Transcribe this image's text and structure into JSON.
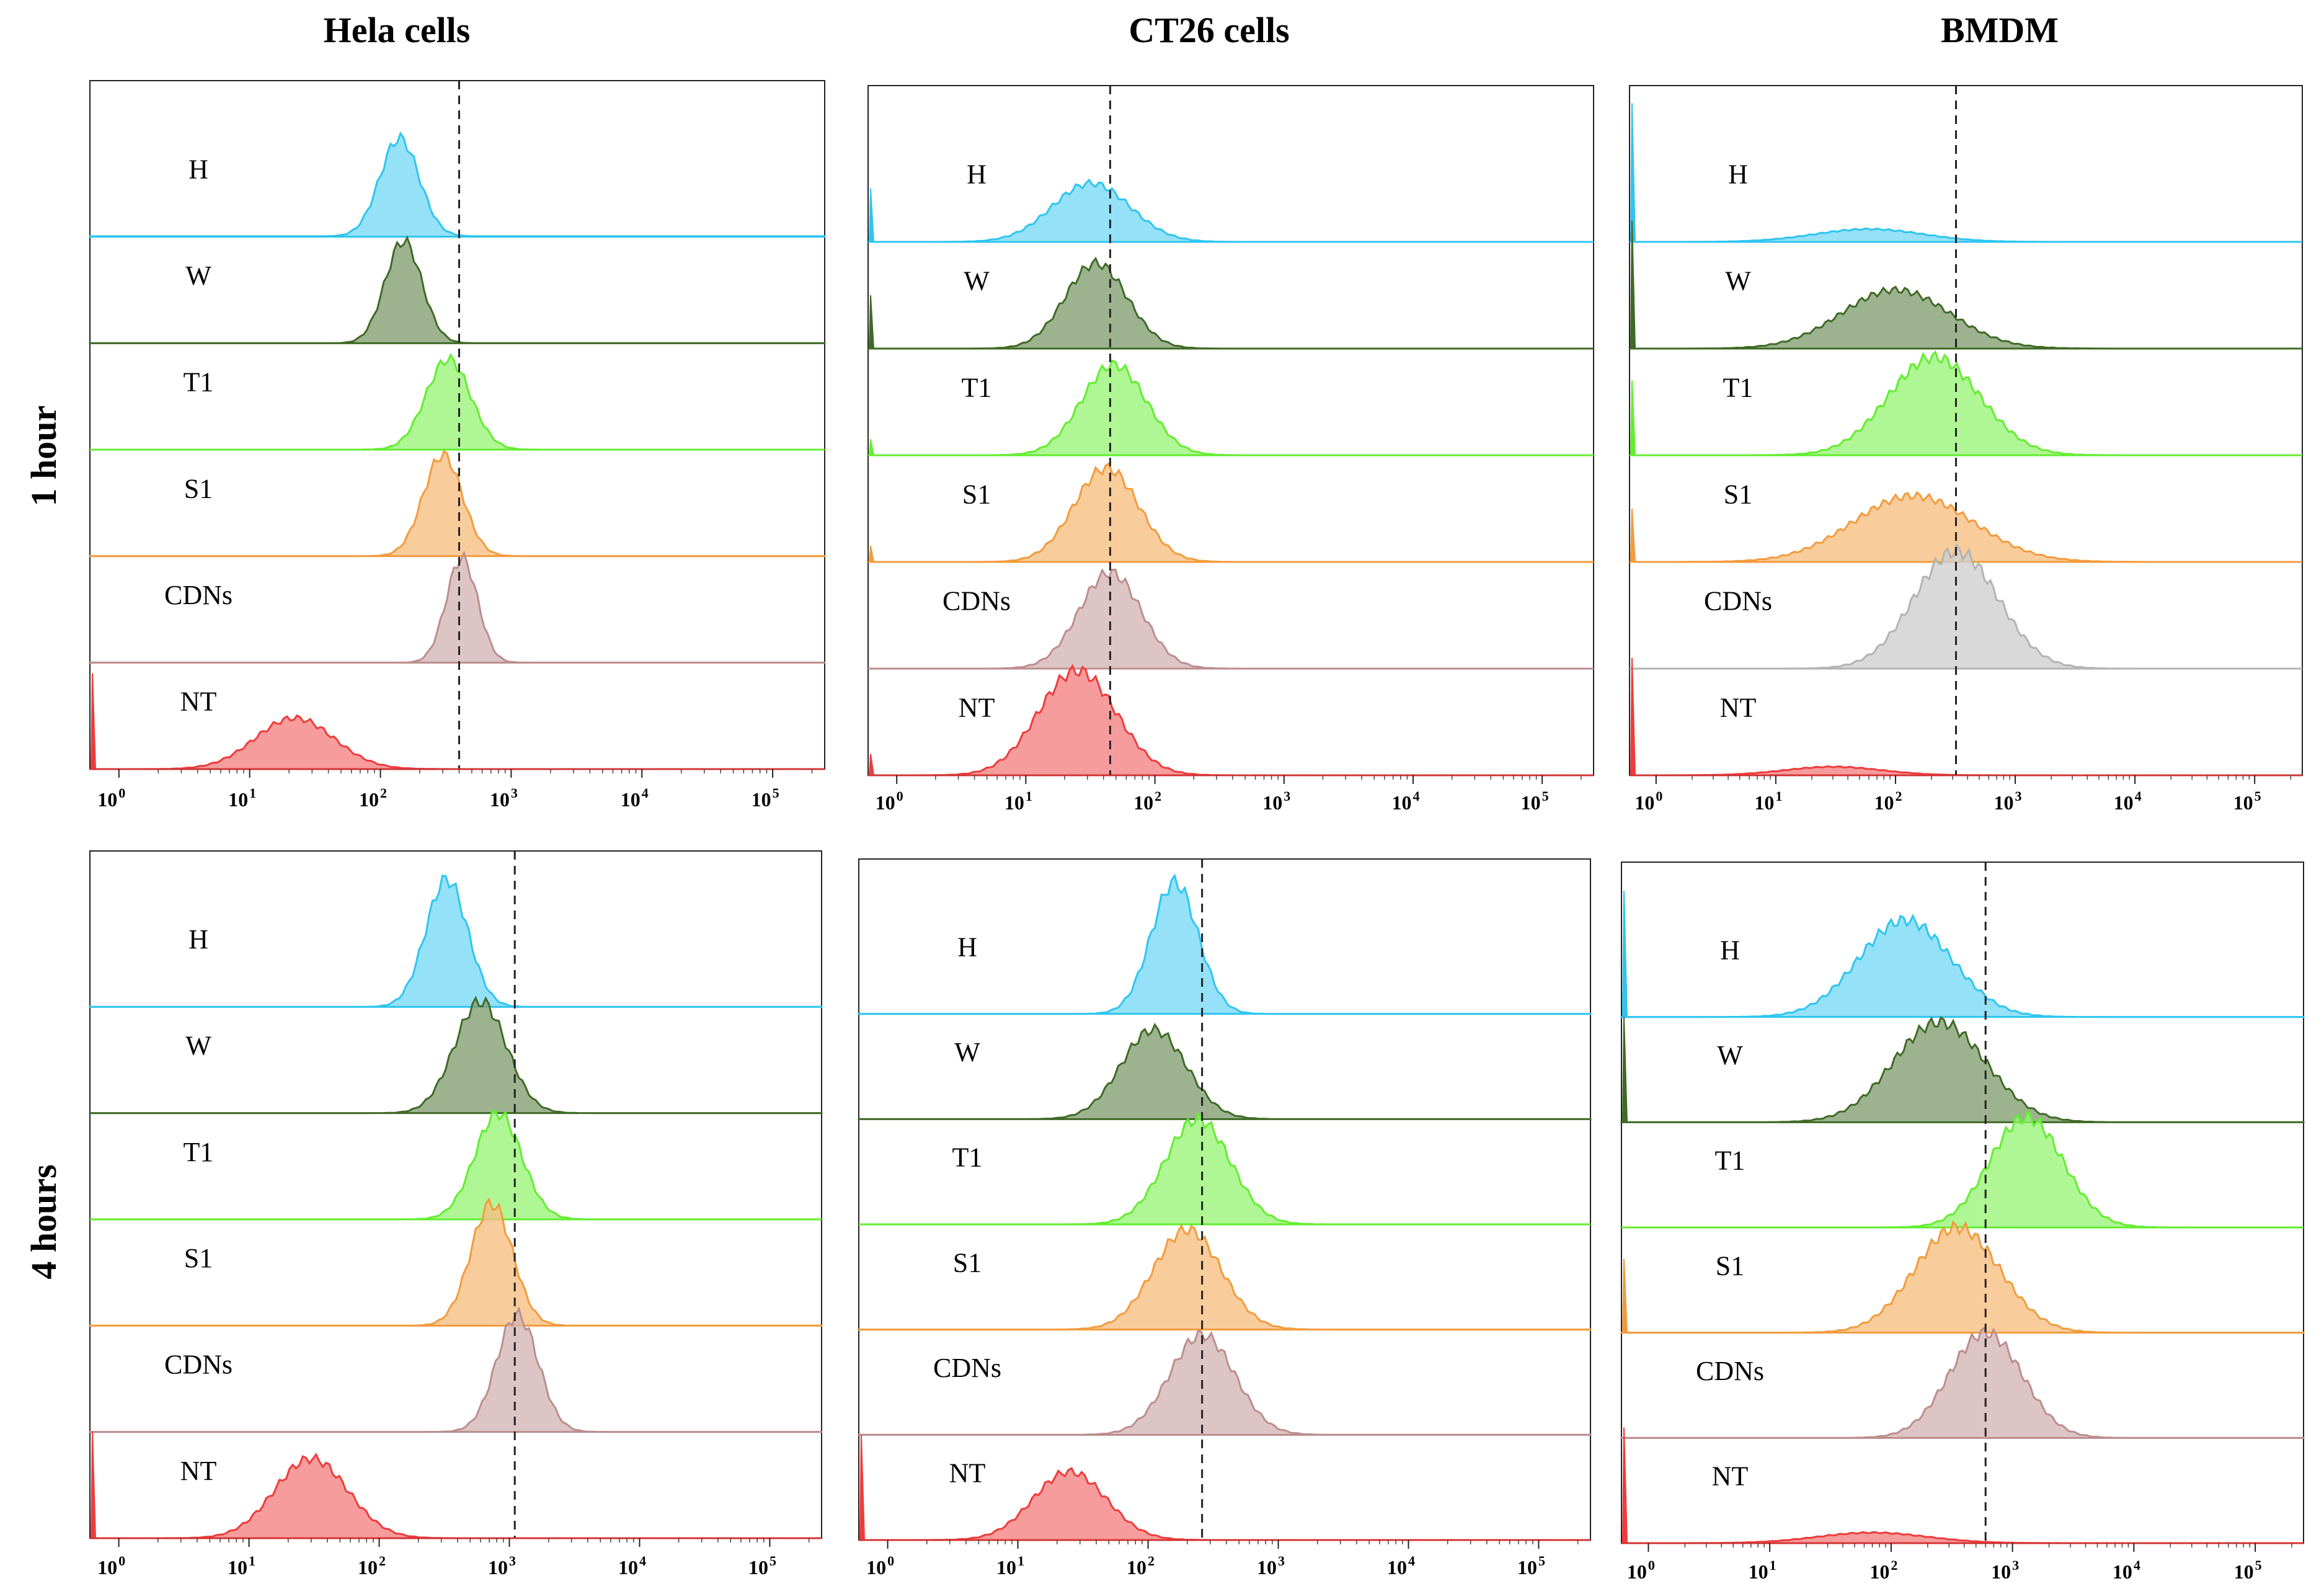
{
  "chart_data": {
    "type": "area",
    "layout": "3 columns x 2 rows of stacked flow-cytometry histogram overlays",
    "columns": [
      "Hela cells",
      "CT26 cells",
      "BMDM"
    ],
    "rows": [
      "1 hour",
      "4 hours"
    ],
    "sample_order_top_to_bottom": [
      "H",
      "W",
      "T1",
      "S1",
      "CDNs",
      "NT"
    ],
    "colors": {
      "H": "#2ec5f0",
      "W": "#3f6a25",
      "T1": "#62ee2e",
      "S1": "#f39b3c",
      "CDNs": "#bd8d8d",
      "NT": "#ef3b3b",
      "CDNs_BMDM_1h": "#b3b3b3"
    },
    "x_axis": {
      "scale": "log",
      "xlim": [
        0.6,
        250000
      ],
      "ticks": [
        {
          "base": "10",
          "exp": "0"
        },
        {
          "base": "10",
          "exp": "1"
        },
        {
          "base": "10",
          "exp": "2"
        },
        {
          "base": "10",
          "exp": "3"
        },
        {
          "base": "10",
          "exp": "4"
        },
        {
          "base": "10",
          "exp": "5"
        }
      ]
    },
    "panels": [
      {
        "name": "hela-1h",
        "column": "Hela cells",
        "row": "1 hour",
        "dashed_line_x": 400,
        "series": [
          {
            "name": "H",
            "peak": 140,
            "height": 0.92,
            "width": 0.15,
            "baseline_noise": 0.005
          },
          {
            "name": "W",
            "peak": 150,
            "height": 0.96,
            "width": 0.14
          },
          {
            "name": "T1",
            "peak": 330,
            "height": 0.85,
            "width": 0.17
          },
          {
            "name": "S1",
            "peak": 300,
            "height": 0.95,
            "width": 0.15
          },
          {
            "name": "CDNs",
            "peak": 420,
            "height": 0.98,
            "width": 0.12
          },
          {
            "name": "NT",
            "peak": 22,
            "height": 0.48,
            "width": 0.3,
            "spike_at_min": 0.9
          }
        ]
      },
      {
        "name": "ct26-1h",
        "column": "CT26 cells",
        "row": "1 hour",
        "dashed_line_x": 45,
        "series": [
          {
            "name": "H",
            "peak": 32,
            "height": 0.55,
            "width": 0.3,
            "spike_at_min": 0.5
          },
          {
            "name": "W",
            "peak": 35,
            "height": 0.8,
            "width": 0.24,
            "spike_at_min": 0.5
          },
          {
            "name": "T1",
            "peak": 48,
            "height": 0.85,
            "width": 0.25,
            "spike_at_min": 0.15
          },
          {
            "name": "S1",
            "peak": 42,
            "height": 0.88,
            "width": 0.25,
            "spike_at_min": 0.15
          },
          {
            "name": "CDNs",
            "peak": 45,
            "height": 0.9,
            "width": 0.24
          },
          {
            "name": "NT",
            "peak": 25,
            "height": 0.98,
            "width": 0.3,
            "spike_at_min": 0.2
          }
        ]
      },
      {
        "name": "bmdm-1h",
        "column": "BMDM",
        "row": "1 hour",
        "dashed_line_x": 320,
        "series": [
          {
            "name": "H",
            "peak": 60,
            "height": 0.12,
            "width": 0.45,
            "spike_at_min": 1.3
          },
          {
            "name": "W",
            "peak": 100,
            "height": 0.55,
            "width": 0.45,
            "spike_at_min": 1.2
          },
          {
            "name": "T1",
            "peak": 210,
            "height": 0.92,
            "width": 0.38,
            "spike_at_min": 0.7
          },
          {
            "name": "S1",
            "peak": 140,
            "height": 0.62,
            "width": 0.5,
            "spike_at_min": 0.5
          },
          {
            "name": "CDNs",
            "peak": 320,
            "height": 1.1,
            "width": 0.35
          },
          {
            "name": "NT",
            "peak": 30,
            "height": 0.08,
            "width": 0.4,
            "spike_at_min": 1.1
          }
        ]
      },
      {
        "name": "hela-4h",
        "column": "Hela cells",
        "row": "4 hours",
        "dashed_line_x": 1100,
        "series": [
          {
            "name": "H",
            "peak": 330,
            "height": 1.2,
            "width": 0.16
          },
          {
            "name": "W",
            "peak": 600,
            "height": 1.05,
            "width": 0.2
          },
          {
            "name": "T1",
            "peak": 820,
            "height": 1.0,
            "width": 0.18
          },
          {
            "name": "S1",
            "peak": 730,
            "height": 1.15,
            "width": 0.16
          },
          {
            "name": "CDNs",
            "peak": 1150,
            "height": 1.1,
            "width": 0.16
          },
          {
            "name": "NT",
            "peak": 30,
            "height": 0.75,
            "width": 0.28,
            "spike_at_min": 1.0
          }
        ]
      },
      {
        "name": "ct26-4h",
        "column": "CT26 cells",
        "row": "4 hours",
        "dashed_line_x": 260,
        "series": [
          {
            "name": "H",
            "peak": 160,
            "height": 1.25,
            "width": 0.18
          },
          {
            "name": "W",
            "peak": 110,
            "height": 0.85,
            "width": 0.25
          },
          {
            "name": "T1",
            "peak": 240,
            "height": 1.0,
            "width": 0.25
          },
          {
            "name": "S1",
            "peak": 200,
            "height": 0.95,
            "width": 0.26
          },
          {
            "name": "CDNs",
            "peak": 260,
            "height": 0.95,
            "width": 0.25
          },
          {
            "name": "NT",
            "peak": 25,
            "height": 0.65,
            "width": 0.28,
            "spike_at_min": 1.0
          }
        ]
      },
      {
        "name": "bmdm-4h",
        "column": "BMDM",
        "row": "4 hours",
        "dashed_line_x": 600,
        "series": [
          {
            "name": "H",
            "peak": 130,
            "height": 0.92,
            "width": 0.38,
            "spike_at_min": 1.2
          },
          {
            "name": "W",
            "peak": 250,
            "height": 0.95,
            "width": 0.38,
            "spike_at_min": 1.0
          },
          {
            "name": "T1",
            "peak": 1300,
            "height": 1.05,
            "width": 0.3
          },
          {
            "name": "S1",
            "peak": 350,
            "height": 1.0,
            "width": 0.35,
            "spike_at_min": 0.7
          },
          {
            "name": "CDNs",
            "peak": 600,
            "height": 1.0,
            "width": 0.3
          },
          {
            "name": "NT",
            "peak": 70,
            "height": 0.1,
            "width": 0.45,
            "spike_at_min": 1.1
          }
        ]
      }
    ]
  }
}
